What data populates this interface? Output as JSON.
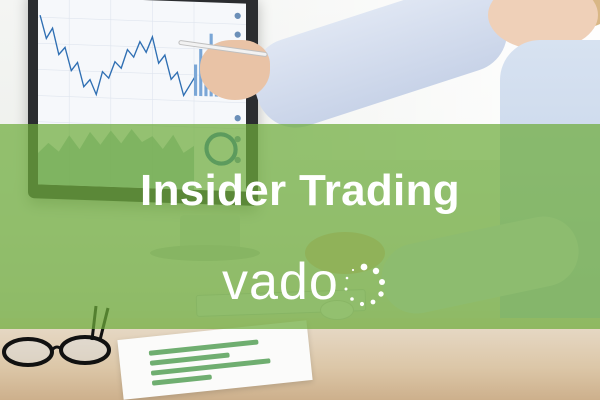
{
  "banner": {
    "title": "Insider Trading",
    "brand_logo": "vado",
    "overlay_color": "#6eac3c"
  },
  "scene": {
    "icons": [
      "line-chart",
      "eyeglasses-icon",
      "pen-icon"
    ]
  }
}
